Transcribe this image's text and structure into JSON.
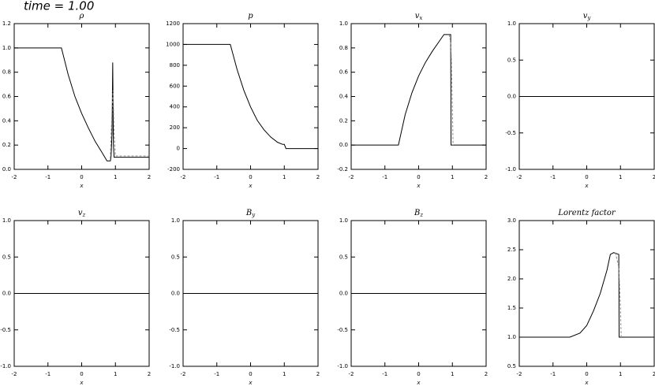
{
  "header": {
    "text": "time = 1.00"
  },
  "chart_data": [
    {
      "type": "line",
      "title": [
        "ρ"
      ],
      "xlabel": "x",
      "xlim": [
        -2,
        2
      ],
      "xticks": [
        -2,
        -1,
        0,
        1,
        2
      ],
      "ylim": [
        0,
        1.2
      ],
      "yticks": [
        {
          "value": 0,
          "label": "0.0"
        },
        {
          "value": 0.2,
          "label": "0.2"
        },
        {
          "value": 0.4,
          "label": "0.4"
        },
        {
          "value": 0.6,
          "label": "0.6"
        },
        {
          "value": 0.8,
          "label": "0.8"
        },
        {
          "value": 1,
          "label": "1.0"
        },
        {
          "value": 1.2,
          "label": "1.2"
        }
      ],
      "series": [
        {
          "color": "#000000",
          "x": [
            -2,
            -0.6,
            -0.4,
            -0.2,
            0,
            0.2,
            0.4,
            0.6,
            0.75,
            0.85,
            0.87,
            0.9,
            0.92,
            0.94,
            0.96,
            1.0,
            2
          ],
          "values": [
            1,
            1,
            0.78,
            0.6,
            0.46,
            0.34,
            0.23,
            0.14,
            0.07,
            0.07,
            0.1,
            0.3,
            0.88,
            0.2,
            0.1,
            0.1,
            0.1
          ]
        },
        {
          "color": "#888888",
          "x": [
            0.85,
            0.9,
            0.93,
            0.96,
            1.0,
            2
          ],
          "values": [
            0.09,
            0.5,
            0.65,
            0.3,
            0.11,
            0.11
          ]
        }
      ]
    },
    {
      "type": "line",
      "title": [
        "p"
      ],
      "xlabel": "x",
      "xlim": [
        -2,
        2
      ],
      "xticks": [
        -2,
        -1,
        0,
        1,
        2
      ],
      "ylim": [
        -200,
        1200
      ],
      "yticks": [
        -200,
        0,
        200,
        400,
        600,
        800,
        1000,
        1200
      ],
      "series": [
        {
          "color": "#000000",
          "x": [
            -2,
            -0.6,
            -0.4,
            -0.2,
            0,
            0.2,
            0.4,
            0.6,
            0.8,
            0.95,
            1.0,
            1.05,
            2
          ],
          "values": [
            1000,
            1000,
            760,
            560,
            400,
            270,
            180,
            110,
            60,
            40,
            40,
            0,
            0
          ]
        }
      ]
    },
    {
      "type": "line",
      "title": [
        "v",
        "x"
      ],
      "xlabel": "x",
      "xlim": [
        -2,
        2
      ],
      "xticks": [
        -2,
        -1,
        0,
        1,
        2
      ],
      "ylim": [
        -0.2,
        1.0
      ],
      "yticks": [
        {
          "value": -0.2,
          "label": "-0.2"
        },
        {
          "value": 0,
          "label": "0.0"
        },
        {
          "value": 0.2,
          "label": "0.2"
        },
        {
          "value": 0.4,
          "label": "0.4"
        },
        {
          "value": 0.6,
          "label": "0.6"
        },
        {
          "value": 0.8,
          "label": "0.8"
        },
        {
          "value": 1,
          "label": "1.0"
        }
      ],
      "series": [
        {
          "color": "#000000",
          "x": [
            -2,
            -0.6,
            -0.4,
            -0.2,
            0,
            0.2,
            0.4,
            0.6,
            0.75,
            0.95,
            0.96,
            2
          ],
          "values": [
            0,
            0,
            0.25,
            0.43,
            0.57,
            0.68,
            0.77,
            0.85,
            0.91,
            0.91,
            0,
            0
          ]
        },
        {
          "color": "#888888",
          "x": [
            0.9,
            0.95,
            0.97,
            1.0,
            1.02
          ],
          "values": [
            0.91,
            0.85,
            0.7,
            0.3,
            0
          ]
        }
      ]
    },
    {
      "type": "line",
      "title": [
        "v",
        "y"
      ],
      "xlabel": "x",
      "xlim": [
        -2,
        2
      ],
      "xticks": [
        -2,
        -1,
        0,
        1,
        2
      ],
      "ylim": [
        -1,
        1
      ],
      "yticks": [
        {
          "value": -1,
          "label": "-1.0"
        },
        {
          "value": -0.5,
          "label": "-0.5"
        },
        {
          "value": 0,
          "label": "0.0"
        },
        {
          "value": 0.5,
          "label": "0.5"
        },
        {
          "value": 1,
          "label": "1.0"
        }
      ],
      "series": [
        {
          "color": "#000000",
          "x": [
            -2,
            2
          ],
          "values": [
            0,
            0
          ]
        }
      ]
    },
    {
      "type": "line",
      "title": [
        "v",
        "z"
      ],
      "xlabel": "x",
      "xlim": [
        -2,
        2
      ],
      "xticks": [
        -2,
        -1,
        0,
        1,
        2
      ],
      "ylim": [
        -1,
        1
      ],
      "yticks": [
        {
          "value": -1,
          "label": "-1.0"
        },
        {
          "value": -0.5,
          "label": "-0.5"
        },
        {
          "value": 0,
          "label": "0.0"
        },
        {
          "value": 0.5,
          "label": "0.5"
        },
        {
          "value": 1,
          "label": "1.0"
        }
      ],
      "series": [
        {
          "color": "#000000",
          "x": [
            -2,
            2
          ],
          "values": [
            0,
            0
          ]
        }
      ]
    },
    {
      "type": "line",
      "title": [
        "B",
        "y"
      ],
      "xlabel": "x",
      "xlim": [
        -2,
        2
      ],
      "xticks": [
        -2,
        -1,
        0,
        1,
        2
      ],
      "ylim": [
        -1,
        1
      ],
      "yticks": [
        {
          "value": -1,
          "label": "-1.0"
        },
        {
          "value": -0.5,
          "label": "-0.5"
        },
        {
          "value": 0,
          "label": "0.0"
        },
        {
          "value": 0.5,
          "label": "0.5"
        },
        {
          "value": 1,
          "label": "1.0"
        }
      ],
      "series": [
        {
          "color": "#000000",
          "x": [
            -2,
            2
          ],
          "values": [
            0,
            0
          ]
        }
      ]
    },
    {
      "type": "line",
      "title": [
        "B",
        "z"
      ],
      "xlabel": "x",
      "xlim": [
        -2,
        2
      ],
      "xticks": [
        -2,
        -1,
        0,
        1,
        2
      ],
      "ylim": [
        -1,
        1
      ],
      "yticks": [
        {
          "value": -1,
          "label": "-1.0"
        },
        {
          "value": -0.5,
          "label": "-0.5"
        },
        {
          "value": 0,
          "label": "0.0"
        },
        {
          "value": 0.5,
          "label": "0.5"
        },
        {
          "value": 1,
          "label": "1.0"
        }
      ],
      "series": [
        {
          "color": "#000000",
          "x": [
            -2,
            2
          ],
          "values": [
            0,
            0
          ]
        }
      ]
    },
    {
      "type": "line",
      "title": [
        "Lorentz factor"
      ],
      "xlabel": "x",
      "xlim": [
        -2,
        2
      ],
      "xticks": [
        -2,
        -1,
        0,
        1,
        2
      ],
      "ylim": [
        0.5,
        3.0
      ],
      "yticks": [
        {
          "value": 0.5,
          "label": "0.5"
        },
        {
          "value": 1,
          "label": "1.0"
        },
        {
          "value": 1.5,
          "label": "1.5"
        },
        {
          "value": 2,
          "label": "2.0"
        },
        {
          "value": 2.5,
          "label": "2.5"
        },
        {
          "value": 3,
          "label": "3.0"
        }
      ],
      "series": [
        {
          "color": "#000000",
          "x": [
            -2,
            -0.5,
            -0.2,
            0,
            0.2,
            0.4,
            0.6,
            0.7,
            0.8,
            0.95,
            0.96,
            2
          ],
          "values": [
            1,
            1,
            1.07,
            1.2,
            1.45,
            1.75,
            2.15,
            2.42,
            2.45,
            2.42,
            1,
            1
          ]
        },
        {
          "color": "#888888",
          "x": [
            0.85,
            0.95,
            1.0,
            1.02
          ],
          "values": [
            2.45,
            2.2,
            1.5,
            1
          ]
        }
      ]
    }
  ]
}
